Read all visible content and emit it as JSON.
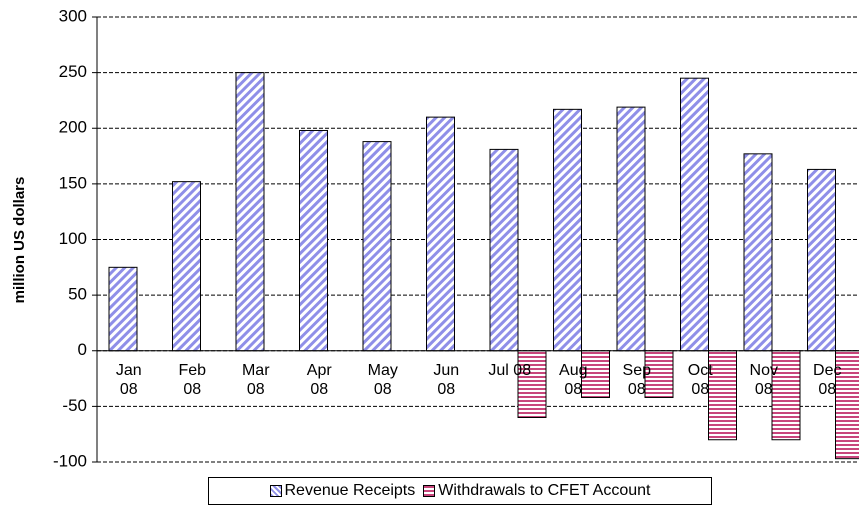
{
  "chart_data": {
    "type": "bar",
    "y_label": "million US dollars",
    "categories": [
      "Jan 08",
      "Feb 08",
      "Mar 08",
      "Apr 08",
      "May 08",
      "Jun 08",
      "Jul 08",
      "Aug 08",
      "Sep 08",
      "Oct 08",
      "Nov 08",
      "Dec 08"
    ],
    "series": [
      {
        "name": "Revenue Receipts",
        "color": "#8f8fe8",
        "values": [
          75,
          152,
          250,
          198,
          188,
          210,
          181,
          217,
          219,
          245,
          177,
          163
        ]
      },
      {
        "name": "Withdrawals to CFET Account",
        "color": "#c8467c",
        "values": [
          null,
          null,
          null,
          null,
          null,
          null,
          -60,
          -42,
          -42,
          -80,
          -80,
          -97
        ]
      }
    ],
    "ylim": [
      -100,
      300
    ],
    "yticks": [
      -100,
      -50,
      0,
      50,
      100,
      150,
      200,
      250,
      300
    ],
    "grid": true,
    "legend": "bottom"
  }
}
